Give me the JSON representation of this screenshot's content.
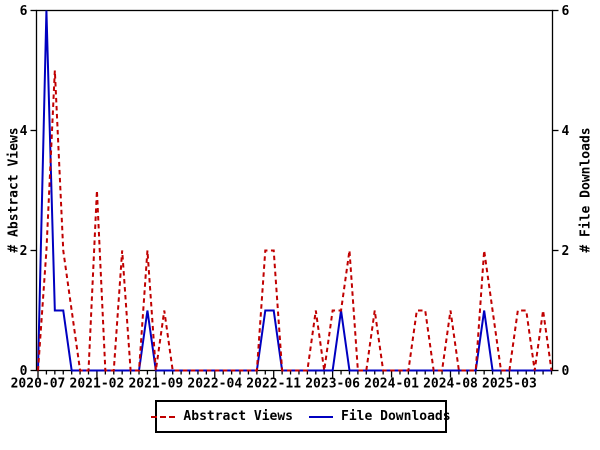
{
  "colors": {
    "abstract_views": "#c00000",
    "file_downloads": "#0000c0",
    "axis": "#000000",
    "background": "#ffffff"
  },
  "legend": {
    "items": [
      {
        "label": "Abstract Views",
        "style": "dashed"
      },
      {
        "label": "File Downloads",
        "style": "solid"
      }
    ]
  },
  "chart_data": {
    "type": "line",
    "title": "",
    "xlabel": "",
    "y_left_label": "# Abstract Views",
    "y_right_label": "# File Downloads",
    "ylim": [
      0,
      6
    ],
    "y_ticks": [
      0,
      2,
      4,
      6
    ],
    "grid": false,
    "legend_position": "bottom-center",
    "x_tick_labels": [
      "2020-07",
      "2021-02",
      "2021-09",
      "2022-04",
      "2022-11",
      "2023-06",
      "2024-01",
      "2024-08",
      "2025-03"
    ],
    "x_tick_indices": [
      0,
      7,
      14,
      21,
      28,
      35,
      42,
      49,
      56
    ],
    "months": [
      "2020-07",
      "2020-08",
      "2020-09",
      "2020-10",
      "2020-11",
      "2020-12",
      "2021-01",
      "2021-02",
      "2021-03",
      "2021-04",
      "2021-05",
      "2021-06",
      "2021-07",
      "2021-08",
      "2021-09",
      "2021-10",
      "2021-11",
      "2021-12",
      "2022-01",
      "2022-02",
      "2022-03",
      "2022-04",
      "2022-05",
      "2022-06",
      "2022-07",
      "2022-08",
      "2022-09",
      "2022-10",
      "2022-11",
      "2022-12",
      "2023-01",
      "2023-02",
      "2023-03",
      "2023-04",
      "2023-05",
      "2023-06",
      "2023-07",
      "2023-08",
      "2023-09",
      "2023-10",
      "2023-11",
      "2023-12",
      "2024-01",
      "2024-02",
      "2024-03",
      "2024-04",
      "2024-05",
      "2024-06",
      "2024-07",
      "2024-08",
      "2024-09",
      "2024-10",
      "2024-11",
      "2024-12",
      "2025-01",
      "2025-02",
      "2025-03",
      "2025-04",
      "2025-05",
      "2025-06",
      "2025-07",
      "2025-08"
    ],
    "series": [
      {
        "name": "Abstract Views",
        "color": "#c00000",
        "style": "dashed",
        "values": [
          0,
          2,
          5,
          2,
          1,
          0,
          0,
          3,
          0,
          0,
          2,
          0,
          0,
          2,
          0,
          1,
          0,
          0,
          0,
          0,
          0,
          0,
          0,
          0,
          0,
          0,
          0,
          2,
          2,
          0,
          0,
          0,
          0,
          1,
          0,
          1,
          1,
          2,
          0,
          0,
          1,
          0,
          0,
          0,
          0,
          1,
          1,
          0,
          0,
          1,
          0,
          0,
          0,
          2,
          1,
          0,
          0,
          1,
          1,
          0,
          1,
          0
        ]
      },
      {
        "name": "File Downloads",
        "color": "#0000c0",
        "style": "solid",
        "values": [
          0,
          6,
          1,
          1,
          0,
          0,
          0,
          0,
          0,
          0,
          0,
          0,
          0,
          1,
          0,
          0,
          0,
          0,
          0,
          0,
          0,
          0,
          0,
          0,
          0,
          0,
          0,
          1,
          1,
          0,
          0,
          0,
          0,
          0,
          0,
          0,
          1,
          0,
          0,
          0,
          0,
          0,
          0,
          0,
          0,
          0,
          0,
          0,
          0,
          0,
          0,
          0,
          0,
          1,
          0,
          0,
          0,
          0,
          0,
          0,
          0,
          0
        ]
      }
    ]
  }
}
